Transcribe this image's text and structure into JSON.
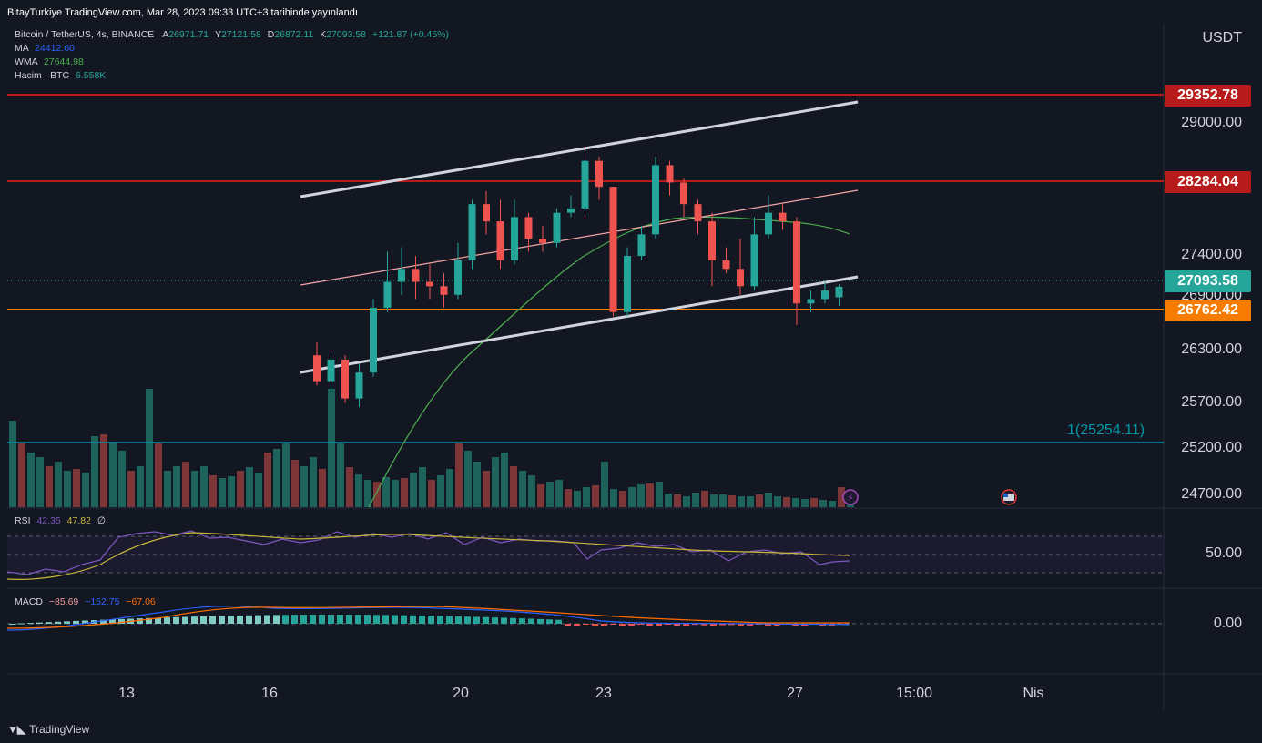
{
  "header": {
    "published": "BitayTurkiye TradingView.com, Mar 28, 2023 09:33 UTC+3 tarihinde yayınlandı"
  },
  "legend": {
    "symbol": "Bitcoin / TetherUS, 4s, BINANCE",
    "open_label": "A",
    "open": "26971.71",
    "high_label": "Y",
    "high": "27121.58",
    "low_label": "D",
    "low": "26872.11",
    "close_label": "K",
    "close": "27093.58",
    "change": "+121.87 (+0.45%)",
    "ma_label": "MA",
    "ma_value": "24412.60",
    "wma_label": "WMA",
    "wma_value": "27644.98",
    "volume_label": "Hacim · BTC",
    "volume_value": "6.558K",
    "rsi_label": "RSI",
    "rsi_value": "42.35",
    "rsi_ma_value": "47.82",
    "rsi_extra": "∅",
    "macd_label": "MACD",
    "macd_hist": "−85.69",
    "macd_line": "−152.75",
    "macd_signal": "−67.06"
  },
  "price_axis": {
    "currency": "USDT",
    "ticks": [
      "29000.00",
      "27400.00",
      "26900.00",
      "26300.00",
      "25700.00",
      "25200.00",
      "24700.00"
    ],
    "rsi_tick": "50.00",
    "macd_tick": "0.00"
  },
  "price_tags": [
    {
      "label": "29352.78",
      "color": "#b71c1c"
    },
    {
      "label": "28284.04",
      "color": "#b71c1c"
    },
    {
      "label": "27093.58",
      "color": "#26a69a"
    },
    {
      "label": "26762.42",
      "color": "#f57c00"
    }
  ],
  "fib_label": "1(25254.11)",
  "time_axis": [
    "13",
    "16",
    "20",
    "23",
    "27",
    "15:00",
    "Nis"
  ],
  "branding": {
    "logo_text": "TradingView"
  },
  "colors": {
    "up": "#26a69a",
    "down": "#ef5350",
    "resistance": "#b71c1c",
    "support": "#f57c00",
    "fib": "#0097a7",
    "wma": "#4caf50",
    "channel": "#d1d4dc",
    "rsi": "#7e57c2",
    "rsi_ma": "#c9b73a"
  },
  "chart_data": {
    "type": "candlestick",
    "series": [
      {
        "name": "Bitcoin / TetherUS, 4s, BINANCE",
        "candles": [
          [
            26300,
            26000,
            26450,
            25950
          ],
          [
            26000,
            26250,
            26350,
            25900
          ],
          [
            26250,
            25800,
            26300,
            25750
          ],
          [
            25800,
            26100,
            26200,
            25700
          ],
          [
            26100,
            26850,
            26950,
            26050
          ],
          [
            26850,
            27150,
            27500,
            26800
          ],
          [
            27150,
            27300,
            27550,
            27000
          ],
          [
            27300,
            27150,
            27450,
            26950
          ],
          [
            27150,
            27100,
            27350,
            26950
          ],
          [
            27100,
            27000,
            27250,
            26850
          ],
          [
            27000,
            27400,
            27600,
            26950
          ],
          [
            27400,
            28050,
            28100,
            27300
          ],
          [
            28050,
            27850,
            28200,
            27700
          ],
          [
            27850,
            27400,
            28100,
            27300
          ],
          [
            27400,
            27900,
            28100,
            27350
          ],
          [
            27900,
            27650,
            27950,
            27500
          ],
          [
            27650,
            27600,
            27800,
            27500
          ],
          [
            27600,
            27950,
            28000,
            27550
          ],
          [
            27950,
            28000,
            28150,
            27900
          ],
          [
            28000,
            28550,
            28700,
            27900
          ],
          [
            28550,
            28250,
            28600,
            28100
          ],
          [
            28250,
            26800,
            28250,
            26750
          ],
          [
            26800,
            27450,
            27550,
            26750
          ],
          [
            27450,
            27700,
            27800,
            27400
          ],
          [
            27700,
            28500,
            28600,
            27650
          ],
          [
            28500,
            28300,
            28550,
            28150
          ],
          [
            28300,
            28050,
            28350,
            27900
          ],
          [
            28050,
            27850,
            28100,
            27700
          ],
          [
            27850,
            27400,
            27950,
            27100
          ],
          [
            27400,
            27300,
            27550,
            27250
          ],
          [
            27300,
            27100,
            27650,
            27000
          ],
          [
            27100,
            27700,
            27900,
            27050
          ],
          [
            27700,
            27950,
            28150,
            27650
          ],
          [
            27950,
            27850,
            28050,
            27750
          ],
          [
            27850,
            26900,
            27900,
            26650
          ],
          [
            26900,
            26950,
            27050,
            26800
          ],
          [
            26950,
            27050,
            27150,
            26900
          ],
          [
            26971.71,
            27093.58,
            27121.58,
            26872.11
          ]
        ]
      },
      {
        "name": "MA",
        "values": [
          24412.6
        ]
      },
      {
        "name": "WMA",
        "values": [
          27644.98
        ]
      }
    ],
    "horizontal_levels": [
      29352.78,
      28284.04,
      26762.42,
      25254.11
    ],
    "last_price": 27093.58,
    "volume_btc_last": "6.558K",
    "rsi": {
      "value": 42.35,
      "ma": 47.82,
      "bands": [
        30,
        50,
        70
      ]
    },
    "macd": {
      "hist": -85.69,
      "macd": -152.75,
      "signal": -67.06
    },
    "x_ticks": [
      "13",
      "16",
      "20",
      "23",
      "27",
      "15:00",
      "Nis"
    ],
    "grid": false,
    "legend_position": "top-left"
  }
}
